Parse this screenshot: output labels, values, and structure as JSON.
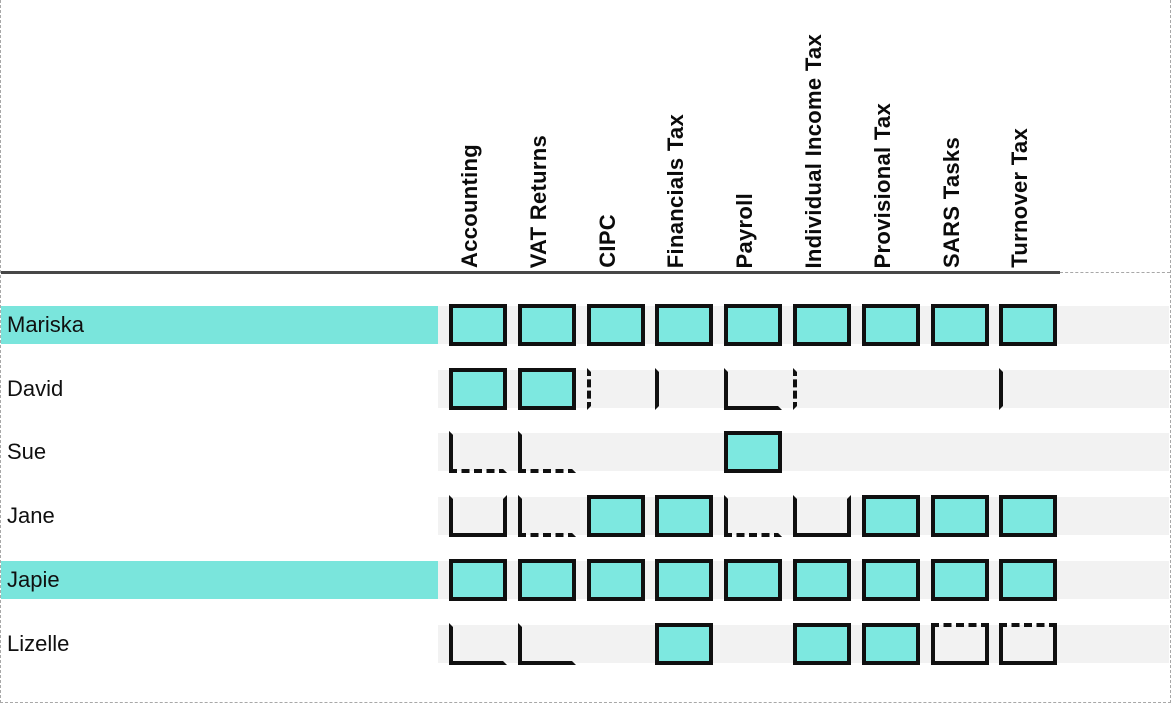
{
  "colors": {
    "cell_fill": "#7DE8E0",
    "row_highlight": "#7AE5DC",
    "row_strip": "#F2F2F2",
    "cell_border": "#101010",
    "header_line": "#474747",
    "page_border": "#A8A8A8"
  },
  "chart_data": {
    "type": "table",
    "title": "",
    "columns": [
      "Accounting",
      "VAT Returns",
      "CIPC",
      "Financials Tax",
      "Payroll",
      "Individual Income Tax",
      "Provisional Tax",
      "SARS Tasks",
      "Turnover Tax"
    ],
    "cell_state_values": [
      "filled",
      "none",
      "left_solid",
      "left_dashed",
      "left_bottom",
      "left_solid_bottom_dashed",
      "open_top",
      "dashed_top_box"
    ],
    "rows": [
      {
        "name": "Mariska",
        "highlighted": true,
        "cells": [
          "filled",
          "filled",
          "filled",
          "filled",
          "filled",
          "filled",
          "filled",
          "filled",
          "filled"
        ]
      },
      {
        "name": "David",
        "highlighted": false,
        "cells": [
          "filled",
          "filled",
          "left_dashed",
          "left_solid",
          "left_bottom",
          "left_dashed",
          "none",
          "none",
          "left_solid"
        ]
      },
      {
        "name": "Sue",
        "highlighted": false,
        "cells": [
          "left_solid_bottom_dashed",
          "left_solid_bottom_dashed",
          "none",
          "none",
          "filled",
          "none",
          "none",
          "none",
          "none"
        ]
      },
      {
        "name": "Jane",
        "highlighted": false,
        "cells": [
          "open_top",
          "left_solid_bottom_dashed",
          "filled",
          "filled",
          "left_solid_bottom_dashed",
          "open_top",
          "filled",
          "filled",
          "filled"
        ]
      },
      {
        "name": "Japie",
        "highlighted": true,
        "cells": [
          "filled",
          "filled",
          "filled",
          "filled",
          "filled",
          "filled",
          "filled",
          "filled",
          "filled"
        ]
      },
      {
        "name": "Lizelle",
        "highlighted": false,
        "cells": [
          "left_bottom",
          "left_bottom",
          "none",
          "filled",
          "none",
          "filled",
          "filled",
          "dashed_top_box",
          "dashed_top_box"
        ]
      }
    ]
  }
}
